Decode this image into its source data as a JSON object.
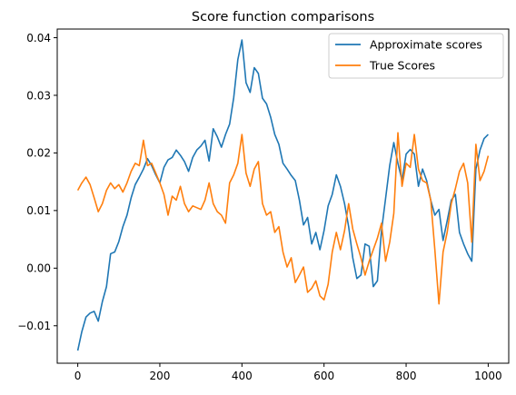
{
  "chart_data": {
    "type": "line",
    "title": "Score function comparisons",
    "xlabel": "",
    "ylabel": "",
    "xlim": [
      -50,
      1050
    ],
    "ylim": [
      -0.0165,
      0.0415
    ],
    "x_ticks": [
      0,
      200,
      400,
      600,
      800,
      1000
    ],
    "x_tick_labels": [
      "0",
      "200",
      "400",
      "600",
      "800",
      "1000"
    ],
    "y_ticks": [
      -0.01,
      0.0,
      0.01,
      0.02,
      0.03,
      0.04
    ],
    "y_tick_labels": [
      "−0.01",
      "0.00",
      "0.01",
      "0.02",
      "0.03",
      "0.04"
    ],
    "grid": false,
    "legend_position": "top-right",
    "series": [
      {
        "name": "Approximate scores",
        "color": "#1f77b4",
        "x": [
          0,
          10,
          20,
          30,
          40,
          50,
          60,
          70,
          80,
          90,
          100,
          110,
          120,
          130,
          140,
          150,
          160,
          170,
          180,
          190,
          200,
          210,
          220,
          230,
          240,
          250,
          260,
          270,
          280,
          290,
          300,
          310,
          320,
          330,
          340,
          350,
          360,
          370,
          380,
          390,
          400,
          410,
          420,
          430,
          440,
          450,
          460,
          470,
          480,
          490,
          500,
          510,
          520,
          530,
          540,
          550,
          560,
          570,
          580,
          590,
          600,
          610,
          620,
          630,
          640,
          650,
          660,
          670,
          680,
          690,
          700,
          710,
          720,
          730,
          740,
          750,
          760,
          770,
          780,
          790,
          800,
          810,
          820,
          830,
          840,
          850,
          860,
          870,
          880,
          890,
          900,
          910,
          920,
          930,
          940,
          950,
          960,
          970,
          980,
          990,
          1000
        ],
        "values": [
          -0.0143,
          -0.011,
          -0.0085,
          -0.0078,
          -0.0075,
          -0.0092,
          -0.0058,
          -0.0032,
          0.0025,
          0.0028,
          0.0046,
          0.0072,
          0.0092,
          0.0122,
          0.0145,
          0.0158,
          0.0172,
          0.019,
          0.0178,
          0.0162,
          0.0148,
          0.0175,
          0.0188,
          0.0192,
          0.0205,
          0.0196,
          0.0185,
          0.0168,
          0.0192,
          0.0205,
          0.0212,
          0.0222,
          0.0186,
          0.0242,
          0.0228,
          0.021,
          0.0232,
          0.025,
          0.0296,
          0.0362,
          0.0396,
          0.0322,
          0.0305,
          0.0348,
          0.0338,
          0.0295,
          0.0285,
          0.0262,
          0.0232,
          0.0215,
          0.0182,
          0.0172,
          0.0161,
          0.0152,
          0.0118,
          0.0075,
          0.0088,
          0.0042,
          0.0062,
          0.0032,
          0.0065,
          0.0108,
          0.0128,
          0.0162,
          0.0142,
          0.0112,
          0.0072,
          0.0018,
          -0.0018,
          -0.0012,
          0.0042,
          0.0038,
          -0.0032,
          -0.0022,
          0.0065,
          0.0121,
          0.0178,
          0.0218,
          0.0182,
          0.0152,
          0.0198,
          0.0206,
          0.0198,
          0.0142,
          0.0172,
          0.0152,
          0.0118,
          0.0092,
          0.0102,
          0.0048,
          0.0082,
          0.0118,
          0.0128,
          0.0062,
          0.0042,
          0.0025,
          0.0012,
          0.0172,
          0.0205,
          0.0225,
          0.0232
        ]
      },
      {
        "name": "True Scores",
        "color": "#ff7f0e",
        "x": [
          0,
          10,
          20,
          30,
          40,
          50,
          60,
          70,
          80,
          90,
          100,
          110,
          120,
          130,
          140,
          150,
          160,
          170,
          180,
          190,
          200,
          210,
          220,
          230,
          240,
          250,
          260,
          270,
          280,
          290,
          300,
          310,
          320,
          330,
          340,
          350,
          360,
          370,
          380,
          390,
          400,
          410,
          420,
          430,
          440,
          450,
          460,
          470,
          480,
          490,
          500,
          510,
          520,
          530,
          540,
          550,
          560,
          570,
          580,
          590,
          600,
          610,
          620,
          630,
          640,
          650,
          660,
          670,
          680,
          690,
          700,
          710,
          720,
          730,
          740,
          750,
          760,
          770,
          780,
          790,
          800,
          810,
          820,
          830,
          840,
          850,
          860,
          870,
          880,
          890,
          900,
          910,
          920,
          930,
          940,
          950,
          960,
          970,
          980,
          990,
          1000
        ],
        "values": [
          0.0135,
          0.0148,
          0.0158,
          0.0145,
          0.0122,
          0.0098,
          0.0112,
          0.0135,
          0.0148,
          0.0138,
          0.0145,
          0.0132,
          0.0148,
          0.0168,
          0.0182,
          0.0178,
          0.0222,
          0.0178,
          0.0182,
          0.0165,
          0.0148,
          0.0128,
          0.0092,
          0.0125,
          0.0118,
          0.0142,
          0.0112,
          0.0098,
          0.0108,
          0.0105,
          0.0102,
          0.0118,
          0.0148,
          0.0112,
          0.0098,
          0.0092,
          0.0078,
          0.0148,
          0.0162,
          0.0182,
          0.0232,
          0.0165,
          0.0142,
          0.0172,
          0.0185,
          0.0112,
          0.0092,
          0.0098,
          0.0062,
          0.0072,
          0.0028,
          0.0002,
          0.0018,
          -0.0025,
          -0.0012,
          0.0002,
          -0.0042,
          -0.0035,
          -0.0022,
          -0.0048,
          -0.0055,
          -0.0028,
          0.0028,
          0.0062,
          0.0032,
          0.0065,
          0.0112,
          0.0068,
          0.0042,
          0.0018,
          -0.0012,
          0.0012,
          0.0032,
          0.0052,
          0.0078,
          0.0012,
          0.0045,
          0.0095,
          0.0235,
          0.0142,
          0.0182,
          0.0175,
          0.0232,
          0.0172,
          0.0152,
          0.0148,
          0.0118,
          0.0032,
          -0.0062,
          0.0028,
          0.0062,
          0.0112,
          0.0138,
          0.0168,
          0.0182,
          0.0148,
          0.0045,
          0.0215,
          0.0152,
          0.0168,
          0.0195
        ]
      }
    ]
  }
}
